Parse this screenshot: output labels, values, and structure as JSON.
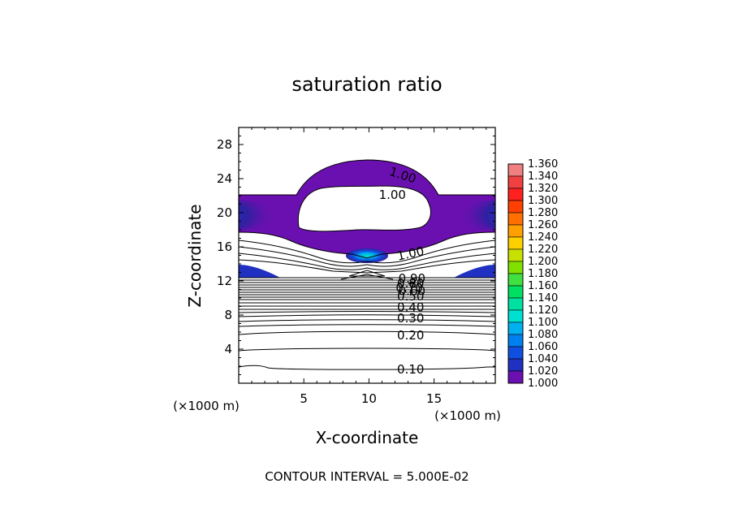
{
  "chart_data": {
    "type": "heatmap",
    "title": "saturation ratio",
    "xlabel": "X-coordinate",
    "ylabel": "Z-coordinate",
    "x_unit": "(×1000 m)",
    "y_unit": "(×1000 m)",
    "xlim": [
      0,
      19.7
    ],
    "ylim": [
      0,
      30
    ],
    "x_ticks": [
      5,
      10,
      15
    ],
    "x_tick_labels": [
      "5",
      "10",
      "15"
    ],
    "y_ticks": [
      4,
      8,
      12,
      16,
      20,
      24,
      28
    ],
    "y_tick_labels": [
      "4",
      "8",
      "12",
      "16",
      "20",
      "24",
      "28"
    ],
    "contour_interval_label": "CONTOUR INTERVAL = 5.000E-02",
    "colorbar": {
      "labels": [
        "1.360",
        "1.340",
        "1.320",
        "1.300",
        "1.280",
        "1.260",
        "1.240",
        "1.220",
        "1.200",
        "1.180",
        "1.160",
        "1.140",
        "1.120",
        "1.100",
        "1.080",
        "1.060",
        "1.040",
        "1.020",
        "1.000"
      ],
      "colors": [
        "#f08080",
        "#f04040",
        "#ff2020",
        "#ff4000",
        "#ff7000",
        "#ffa000",
        "#ffd000",
        "#c8e000",
        "#80e000",
        "#40e040",
        "#00e060",
        "#00e0a0",
        "#00e0d0",
        "#00b0f0",
        "#0080f0",
        "#1050e0",
        "#2030c0",
        "#3020a0",
        "#6a10b0"
      ]
    },
    "contour_labels": [
      {
        "text": "1.00",
        "x": 12.6,
        "z": 24.4,
        "rotate": 18
      },
      {
        "text": "1.00",
        "x": 11.8,
        "z": 22.1,
        "rotate": 0
      },
      {
        "text": "1.00",
        "x": 13.2,
        "z": 15.2,
        "rotate": -12
      },
      {
        "text": "0.90",
        "x": 13.3,
        "z": 12.3,
        "rotate": 0
      },
      {
        "text": "0.80",
        "x": 13.2,
        "z": 11.7,
        "rotate": 0
      },
      {
        "text": "0.70",
        "x": 13.1,
        "z": 11.2,
        "rotate": 0
      },
      {
        "text": "0.60",
        "x": 13.3,
        "z": 10.8,
        "rotate": 0
      },
      {
        "text": "0.50",
        "x": 13.2,
        "z": 10.2,
        "rotate": 0
      },
      {
        "text": "0.40",
        "x": 13.2,
        "z": 8.9,
        "rotate": 0
      },
      {
        "text": "0.30",
        "x": 13.2,
        "z": 7.6,
        "rotate": 0
      },
      {
        "text": "0.20",
        "x": 13.2,
        "z": 5.6,
        "rotate": 0
      },
      {
        "text": "0.10",
        "x": 13.2,
        "z": 1.6,
        "rotate": 0
      }
    ]
  }
}
